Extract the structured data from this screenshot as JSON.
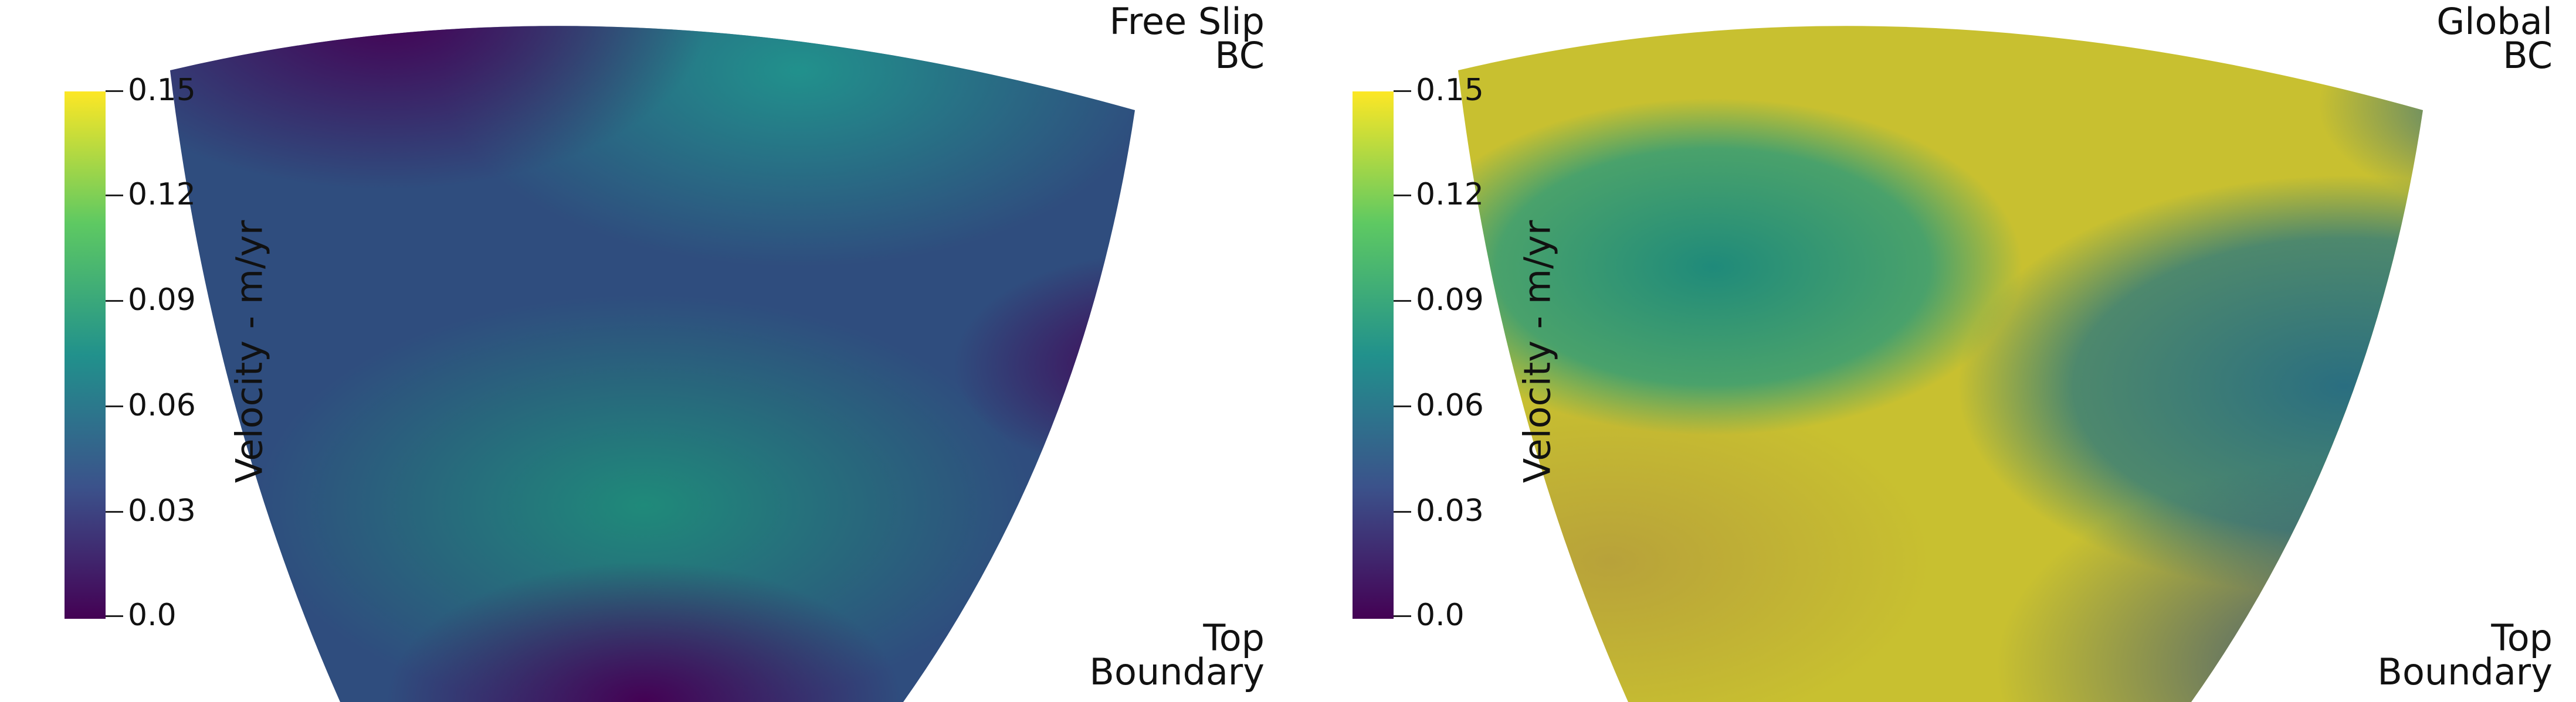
{
  "panels": [
    {
      "colorbar": {
        "title": "Velocity - m/yr",
        "ticks": [
          "0.15",
          "0.12",
          "0.09",
          "0.06",
          "0.03",
          "0.0"
        ],
        "palette": [
          "#fde725",
          "#5ec962",
          "#21918c",
          "#3b528b",
          "#440154"
        ]
      },
      "label_top": [
        "Free Slip",
        "BC"
      ],
      "label_bottom": [
        "Top",
        "Boundary"
      ]
    },
    {
      "colorbar": {
        "title": "Velocity - m/yr",
        "ticks": [
          "0.15",
          "0.12",
          "0.09",
          "0.06",
          "0.03",
          "0.0"
        ],
        "palette": [
          "#fde725",
          "#5ec962",
          "#21918c",
          "#3b528b",
          "#440154"
        ]
      },
      "label_top": [
        "Global",
        "BC"
      ],
      "label_bottom": [
        "Top",
        "Boundary"
      ]
    }
  ]
}
